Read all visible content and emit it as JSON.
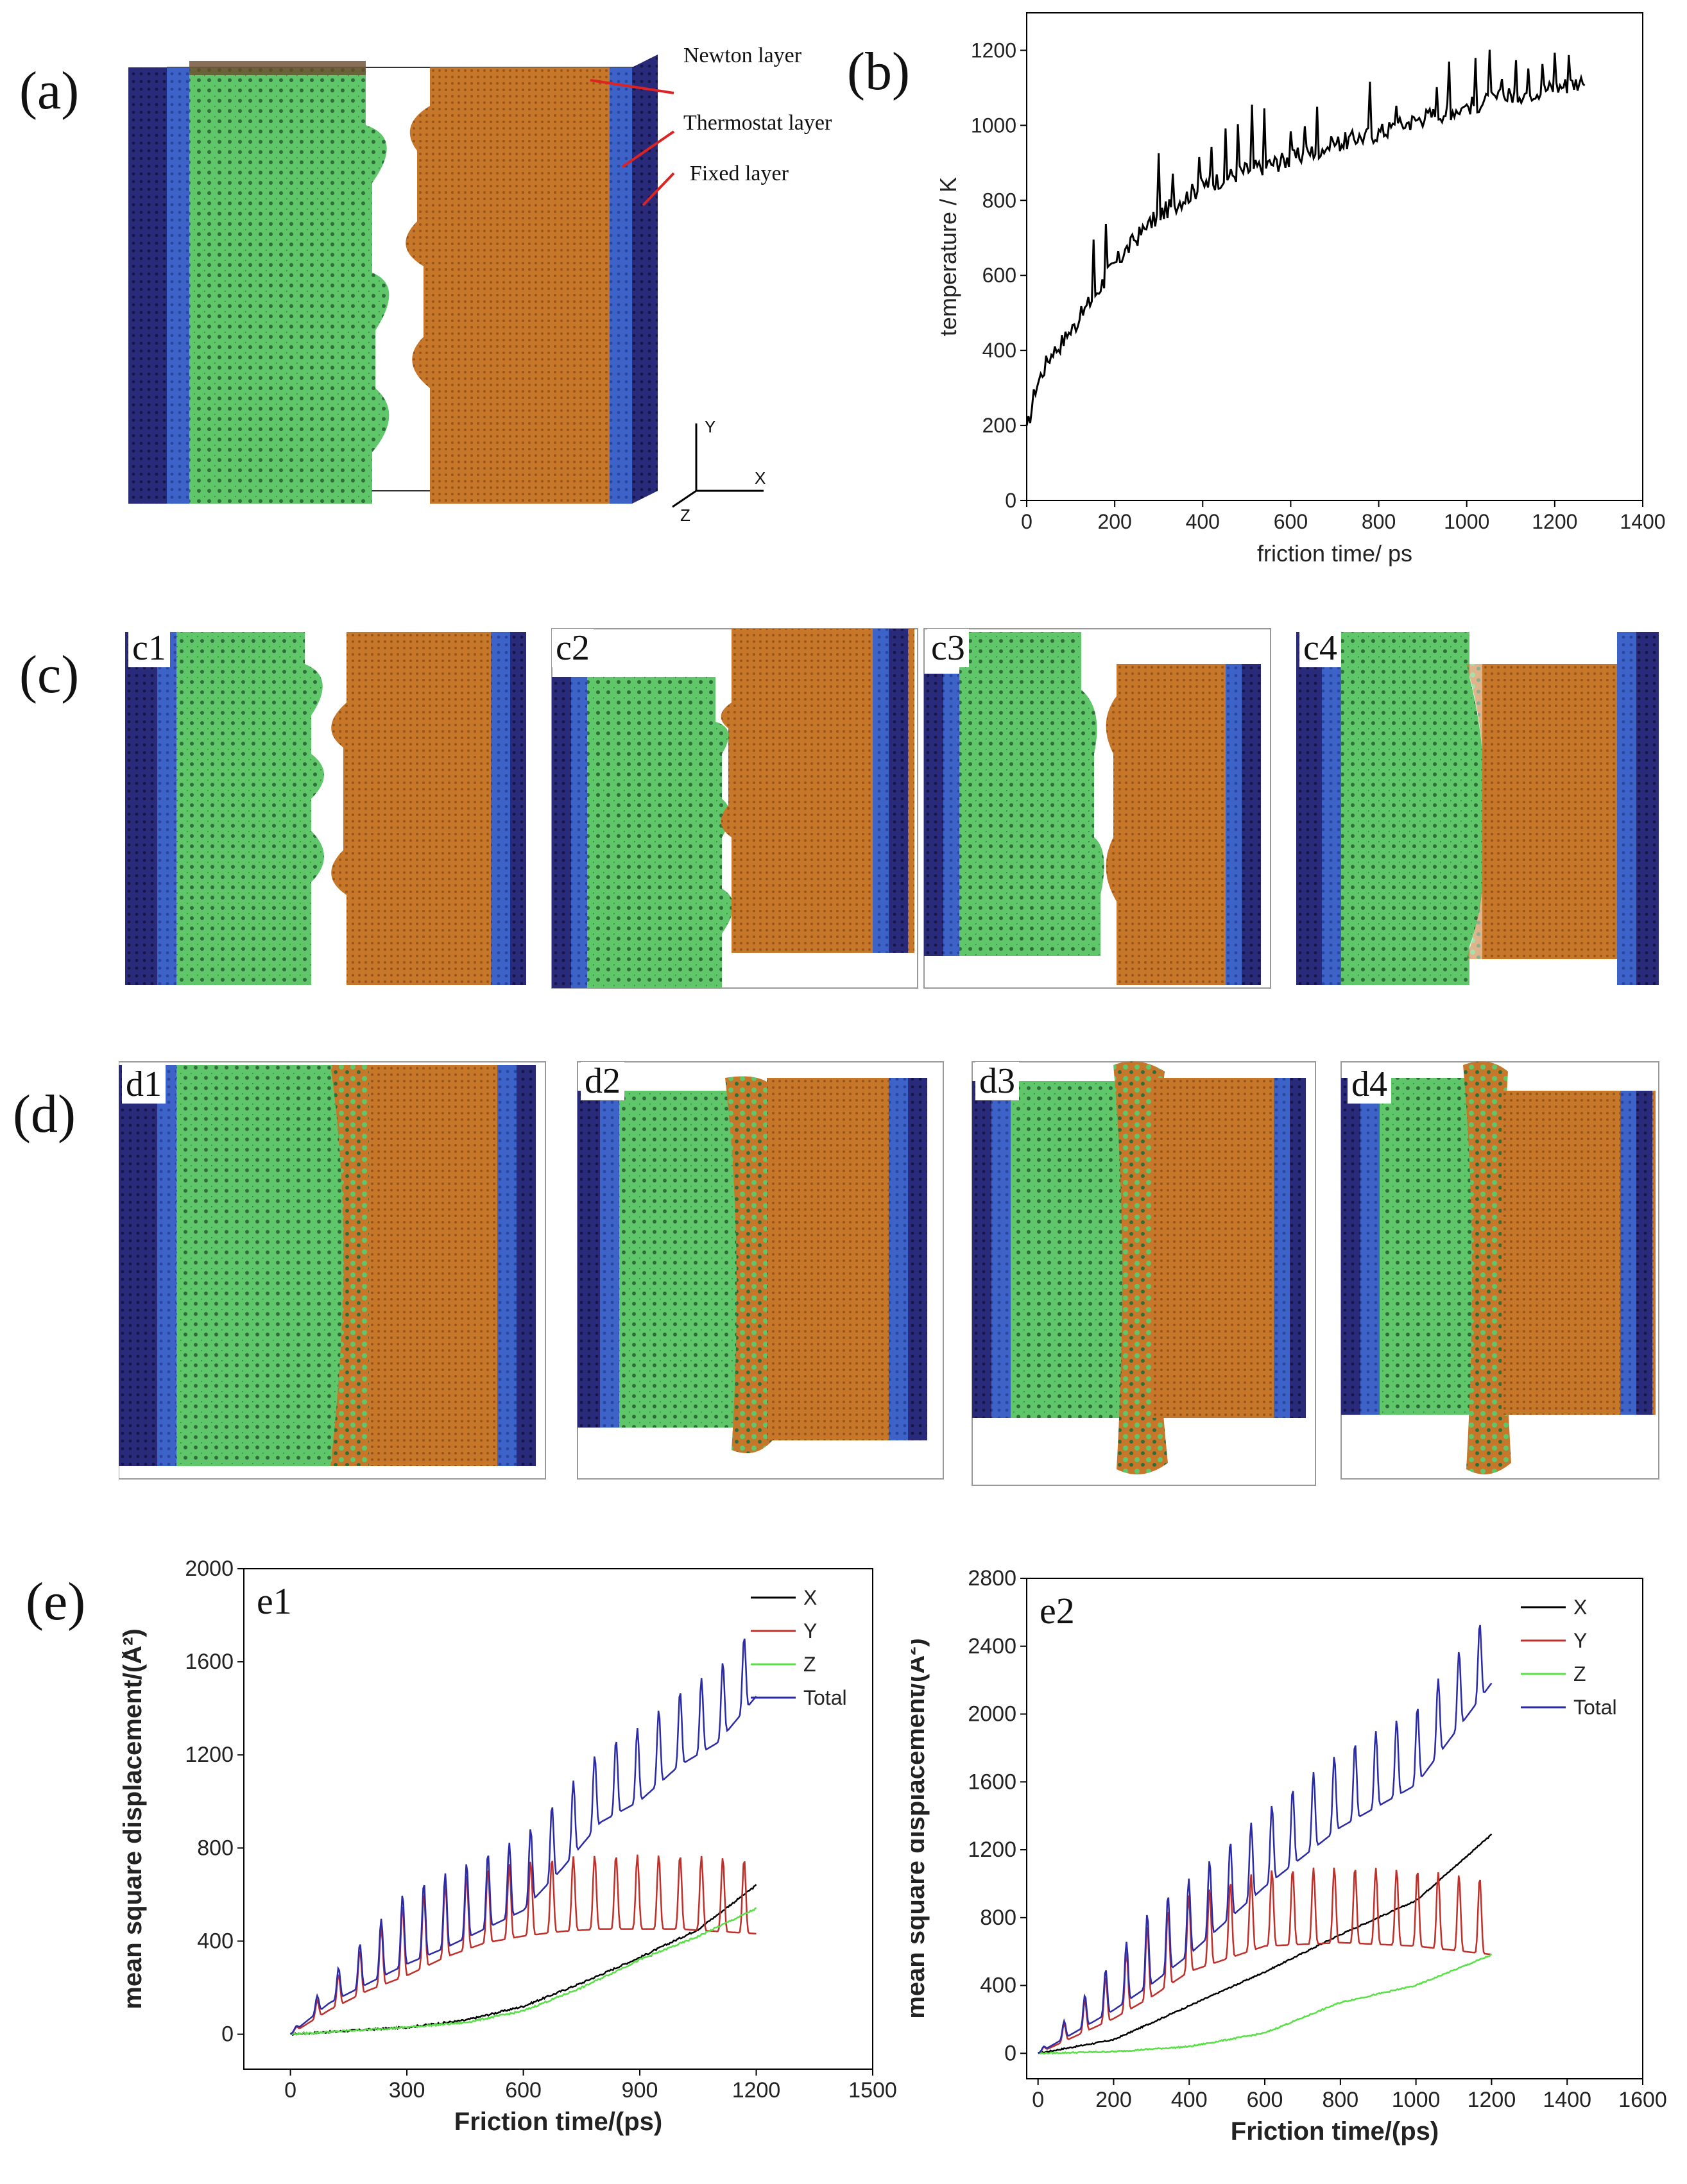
{
  "panels": {
    "a": {
      "label": "(a)",
      "annotations": [
        "Newton layer",
        "Thermostat layer",
        "Fixed layer"
      ],
      "axes": [
        "Y",
        "X",
        "Z"
      ]
    },
    "b": {
      "label": "(b)"
    },
    "c": {
      "label": "(c)",
      "subs": [
        "c1",
        "c2",
        "c3",
        "c4"
      ]
    },
    "d": {
      "label": "(d)",
      "subs": [
        "d1",
        "d2",
        "d3",
        "d4"
      ]
    },
    "e": {
      "label": "(e)"
    }
  },
  "colors": {
    "fixed": "#2a2a7a",
    "thermostat": "#3d63c8",
    "green": "#5fc66a",
    "orange": "#c7772a",
    "black": "#000000",
    "red": "#c0302b",
    "lime": "#58e046",
    "blue": "#2b2ba8"
  },
  "chart_data": [
    {
      "id": "b",
      "type": "line",
      "xlabel": "friction time/ ps",
      "ylabel": "temperature / K",
      "xlim": [
        0,
        1400
      ],
      "ylim": [
        0,
        1300
      ],
      "xticks": [
        0,
        200,
        400,
        600,
        800,
        1000,
        1200,
        1400
      ],
      "yticks": [
        0,
        200,
        400,
        600,
        800,
        1000,
        1200
      ],
      "series": [
        {
          "color": "#000000",
          "x": [
            0,
            20,
            50,
            100,
            150,
            200,
            250,
            300,
            350,
            400,
            500,
            600,
            700,
            800,
            900,
            1000,
            1100,
            1200,
            1270
          ],
          "y": [
            180,
            300,
            380,
            450,
            540,
            630,
            700,
            760,
            800,
            840,
            880,
            910,
            950,
            980,
            1020,
            1050,
            1080,
            1100,
            1120
          ]
        }
      ]
    },
    {
      "id": "e1",
      "type": "line",
      "title": "e1",
      "xlabel": "Friction time/(ps)",
      "ylabel": "mean square displacement/(Å²)",
      "xlim": [
        -120,
        1500
      ],
      "ylim": [
        -150,
        2000
      ],
      "xticks": [
        0,
        300,
        600,
        900,
        1200,
        1500
      ],
      "yticks": [
        0,
        400,
        800,
        1200,
        1600,
        2000
      ],
      "legend": [
        "X",
        "Y",
        "Z",
        "Total"
      ],
      "legend_position": "top-right",
      "series": [
        {
          "name": "X",
          "color": "#000000",
          "x": [
            0,
            150,
            300,
            450,
            600,
            750,
            900,
            1050,
            1200
          ],
          "y": [
            0,
            15,
            30,
            60,
            120,
            220,
            330,
            450,
            640
          ]
        },
        {
          "name": "Y",
          "color": "#c0302b",
          "x": [
            0,
            100,
            200,
            300,
            400,
            500,
            600,
            700,
            800,
            900,
            1000,
            1100,
            1200
          ],
          "y": [
            0,
            120,
            220,
            300,
            380,
            440,
            470,
            490,
            500,
            500,
            500,
            490,
            480
          ]
        },
        {
          "name": "Z",
          "color": "#58e046",
          "x": [
            0,
            150,
            300,
            450,
            600,
            750,
            900,
            1050,
            1200
          ],
          "y": [
            0,
            15,
            30,
            50,
            100,
            200,
            320,
            420,
            540
          ]
        },
        {
          "name": "Total",
          "color": "#2b2ba8",
          "x": [
            0,
            100,
            200,
            300,
            400,
            500,
            600,
            700,
            800,
            900,
            1000,
            1100,
            1200
          ],
          "y": [
            0,
            150,
            250,
            350,
            420,
            500,
            580,
            760,
            960,
            1050,
            1200,
            1300,
            1500
          ]
        }
      ]
    },
    {
      "id": "e2",
      "type": "line",
      "title": "e2",
      "xlabel": "Friction time/(ps)",
      "ylabel": "mean square displacement/(Å²)",
      "xlim": [
        -30,
        1600
      ],
      "ylim": [
        -150,
        2800
      ],
      "xticks": [
        0,
        200,
        400,
        600,
        800,
        1000,
        1200,
        1400,
        1600
      ],
      "yticks": [
        0,
        400,
        800,
        1200,
        1600,
        2000,
        2400,
        2800
      ],
      "legend": [
        "X",
        "Y",
        "Z",
        "Total"
      ],
      "legend_position": "top-right",
      "series": [
        {
          "name": "X",
          "color": "#000000",
          "x": [
            0,
            200,
            400,
            600,
            800,
            1000,
            1200
          ],
          "y": [
            0,
            80,
            280,
            480,
            700,
            900,
            1290
          ]
        },
        {
          "name": "Y",
          "color": "#c0302b",
          "x": [
            0,
            200,
            400,
            600,
            800,
            1000,
            1200
          ],
          "y": [
            0,
            250,
            550,
            700,
            720,
            700,
            650
          ]
        },
        {
          "name": "Z",
          "color": "#58e046",
          "x": [
            0,
            200,
            400,
            600,
            800,
            1000,
            1200
          ],
          "y": [
            0,
            10,
            40,
            120,
            300,
            400,
            580
          ]
        },
        {
          "name": "Total",
          "color": "#2b2ba8",
          "x": [
            0,
            200,
            400,
            600,
            800,
            1000,
            1200
          ],
          "y": [
            0,
            300,
            650,
            1050,
            1400,
            1650,
            2250
          ]
        }
      ]
    }
  ]
}
